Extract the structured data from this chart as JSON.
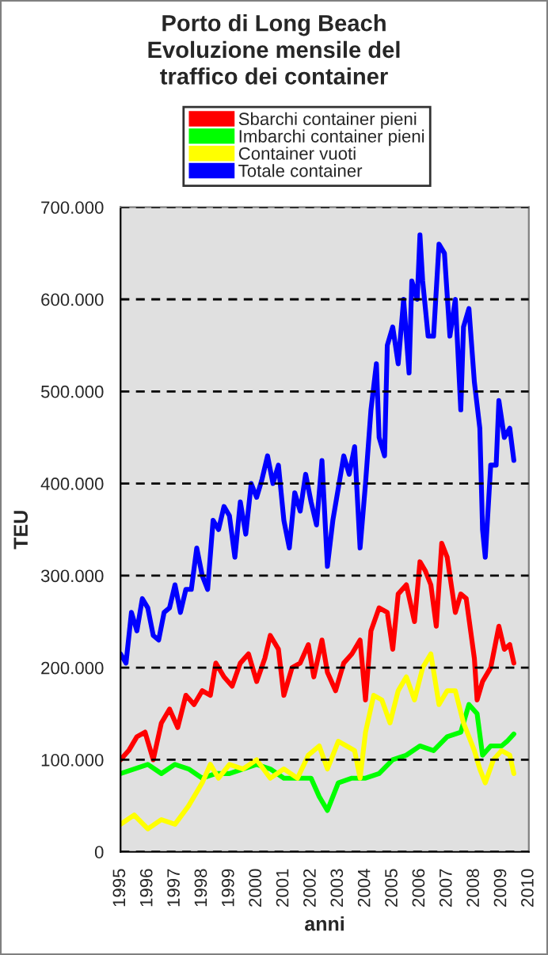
{
  "chart_data": {
    "type": "line",
    "title": "Porto di Long Beach\nEvoluzione mensile del\ntraffico dei container",
    "xlabel": "anni",
    "ylabel": "TEU",
    "legend": "top",
    "grid": "y",
    "line_style": "solid",
    "marker": "none",
    "xlim": [
      1995,
      2010
    ],
    "xticks": [
      1995,
      1996,
      1997,
      1998,
      1999,
      2000,
      2001,
      2002,
      2003,
      2004,
      2005,
      2006,
      2007,
      2008,
      2009,
      2010
    ],
    "ylim": [
      0,
      700000
    ],
    "yticks": [
      0,
      {
        "value": 100000,
        "label": "100.000"
      },
      {
        "value": 200000,
        "label": "200.000"
      },
      {
        "value": 300000,
        "label": "300.000"
      },
      {
        "value": 400000,
        "label": "400.000"
      },
      {
        "value": 500000,
        "label": "500.000"
      },
      {
        "value": 600000,
        "label": "600.000"
      },
      {
        "value": 700000,
        "label": "700.000"
      }
    ],
    "series": [
      {
        "name": "Sbarchi container pieni",
        "color": "#ff0000",
        "x": [
          1995,
          1995.3,
          1995.6,
          1995.9,
          1996.2,
          1996.5,
          1996.8,
          1997.1,
          1997.4,
          1997.7,
          1998,
          1998.3,
          1998.5,
          1998.8,
          1999.1,
          1999.4,
          1999.7,
          2000,
          2000.3,
          2000.5,
          2000.8,
          2001,
          2001.3,
          2001.6,
          2001.9,
          2002.1,
          2002.4,
          2002.6,
          2002.9,
          2003.2,
          2003.5,
          2003.8,
          2004,
          2004.2,
          2004.5,
          2004.8,
          2005,
          2005.2,
          2005.5,
          2005.8,
          2006,
          2006.2,
          2006.4,
          2006.6,
          2006.8,
          2007,
          2007.3,
          2007.5,
          2007.7,
          2008,
          2008.1,
          2008.3,
          2008.6,
          2008.9,
          2009.1,
          2009.3,
          2009.45
        ],
        "values": [
          100000,
          110000,
          125000,
          130000,
          100000,
          140000,
          155000,
          135000,
          170000,
          160000,
          175000,
          170000,
          205000,
          190000,
          180000,
          205000,
          215000,
          185000,
          210000,
          235000,
          220000,
          170000,
          200000,
          205000,
          225000,
          190000,
          230000,
          195000,
          175000,
          205000,
          215000,
          230000,
          165000,
          240000,
          265000,
          260000,
          220000,
          280000,
          290000,
          250000,
          315000,
          305000,
          290000,
          245000,
          335000,
          320000,
          260000,
          280000,
          275000,
          210000,
          165000,
          185000,
          200000,
          245000,
          220000,
          225000,
          205000
        ]
      },
      {
        "name": "Imbarchi container pieni",
        "color": "#00ff00",
        "x": [
          1995,
          1995.5,
          1996,
          1996.5,
          1997,
          1997.5,
          1998,
          1998.5,
          1999,
          1999.5,
          2000,
          2000.5,
          2001,
          2001.5,
          2002,
          2002.3,
          2002.6,
          2003,
          2003.5,
          2004,
          2004.5,
          2005,
          2005.5,
          2006,
          2006.5,
          2007,
          2007.5,
          2007.8,
          2008.1,
          2008.3,
          2008.6,
          2009,
          2009.2,
          2009.45
        ],
        "values": [
          85000,
          90000,
          95000,
          85000,
          95000,
          90000,
          80000,
          85000,
          85000,
          90000,
          95000,
          90000,
          80000,
          80000,
          80000,
          60000,
          45000,
          75000,
          80000,
          80000,
          85000,
          100000,
          105000,
          115000,
          110000,
          125000,
          130000,
          160000,
          150000,
          105000,
          115000,
          115000,
          120000,
          128000
        ]
      },
      {
        "name": "Container vuoti",
        "color": "#ffff00",
        "x": [
          1995,
          1995.5,
          1996,
          1996.5,
          1997,
          1997.5,
          1998,
          1998.3,
          1998.6,
          1999,
          1999.5,
          2000,
          2000.5,
          2001,
          2001.5,
          2001.9,
          2002.3,
          2002.6,
          2003,
          2003.3,
          2003.6,
          2003.8,
          2004,
          2004.3,
          2004.6,
          2004.9,
          2005.2,
          2005.5,
          2005.8,
          2006.1,
          2006.4,
          2006.7,
          2007,
          2007.3,
          2007.6,
          2008,
          2008.2,
          2008.4,
          2008.7,
          2009,
          2009.3,
          2009.45
        ],
        "values": [
          30000,
          40000,
          25000,
          35000,
          30000,
          50000,
          75000,
          95000,
          80000,
          95000,
          90000,
          100000,
          80000,
          90000,
          80000,
          105000,
          115000,
          90000,
          120000,
          115000,
          110000,
          80000,
          130000,
          170000,
          165000,
          140000,
          175000,
          190000,
          165000,
          200000,
          215000,
          160000,
          175000,
          175000,
          140000,
          110000,
          90000,
          75000,
          100000,
          110000,
          105000,
          85000
        ]
      },
      {
        "name": "Totale container",
        "color": "#0000ff",
        "x": [
          1995,
          1995.2,
          1995.4,
          1995.6,
          1995.8,
          1996,
          1996.2,
          1996.4,
          1996.6,
          1996.8,
          1997,
          1997.2,
          1997.4,
          1997.6,
          1997.8,
          1998,
          1998.2,
          1998.4,
          1998.6,
          1998.8,
          1999,
          1999.2,
          1999.4,
          1999.6,
          1999.8,
          2000,
          2000.2,
          2000.4,
          2000.6,
          2000.8,
          2001,
          2001.2,
          2001.4,
          2001.6,
          2001.8,
          2002,
          2002.2,
          2002.4,
          2002.6,
          2002.8,
          2003,
          2003.2,
          2003.4,
          2003.6,
          2003.8,
          2004,
          2004.2,
          2004.4,
          2004.5,
          2004.7,
          2004.8,
          2005,
          2005.2,
          2005.4,
          2005.6,
          2005.7,
          2005.9,
          2006,
          2006.1,
          2006.3,
          2006.5,
          2006.7,
          2006.9,
          2007.1,
          2007.3,
          2007.5,
          2007.6,
          2007.8,
          2008,
          2008.2,
          2008.3,
          2008.4,
          2008.6,
          2008.8,
          2008.9,
          2009.1,
          2009.3,
          2009.45
        ],
        "values": [
          215000,
          205000,
          260000,
          240000,
          275000,
          265000,
          235000,
          230000,
          260000,
          265000,
          290000,
          260000,
          285000,
          285000,
          330000,
          300000,
          285000,
          360000,
          350000,
          375000,
          365000,
          320000,
          380000,
          345000,
          400000,
          385000,
          405000,
          430000,
          400000,
          420000,
          360000,
          330000,
          390000,
          370000,
          410000,
          380000,
          355000,
          425000,
          310000,
          360000,
          395000,
          430000,
          410000,
          440000,
          330000,
          400000,
          480000,
          530000,
          450000,
          430000,
          550000,
          570000,
          530000,
          600000,
          520000,
          620000,
          600000,
          670000,
          620000,
          560000,
          560000,
          660000,
          650000,
          560000,
          600000,
          480000,
          570000,
          590000,
          510000,
          460000,
          350000,
          320000,
          420000,
          420000,
          490000,
          450000,
          460000,
          425000
        ]
      }
    ]
  }
}
